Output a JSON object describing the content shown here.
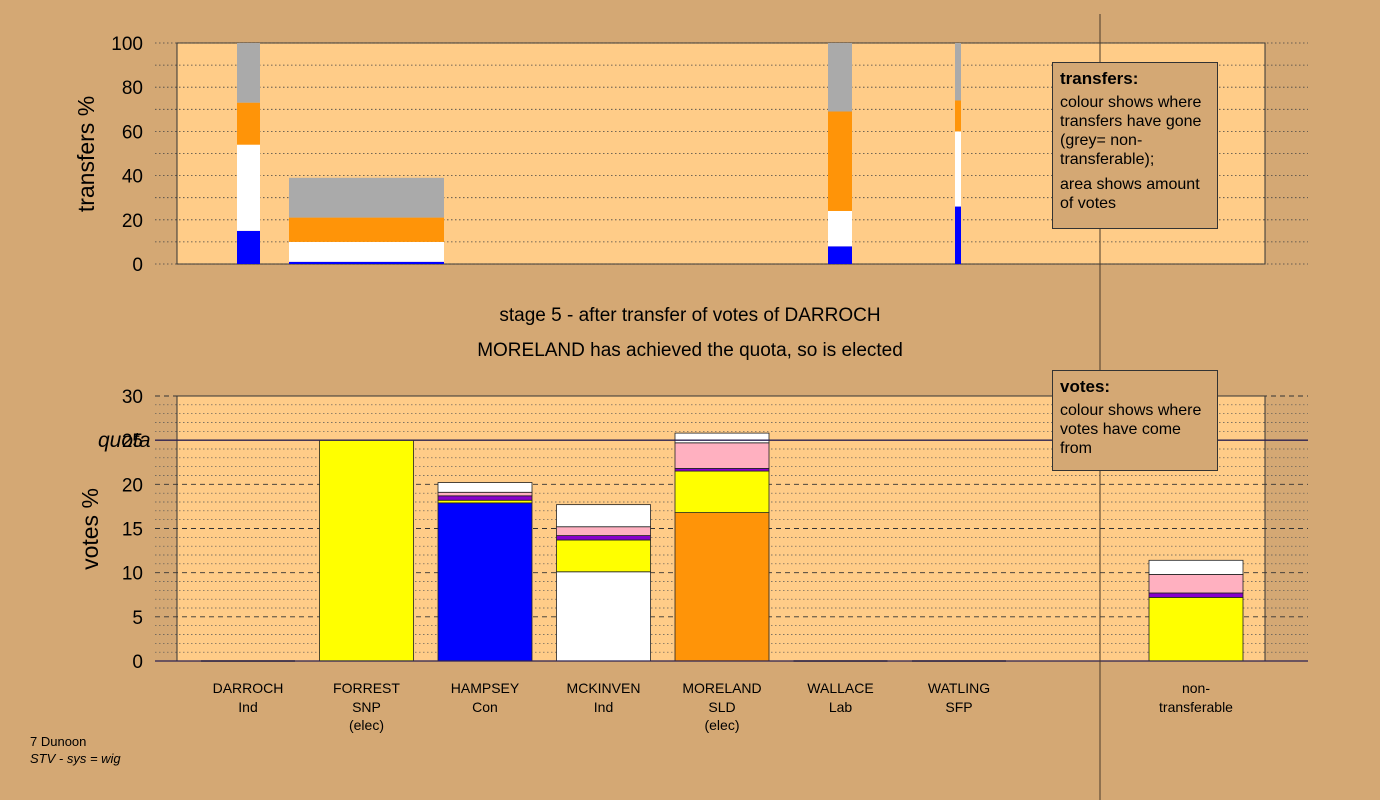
{
  "stage_title": "stage 5 - after transfer of votes of DARROCH",
  "stage_subtitle": "MORELAND has achieved the quota, so is elected",
  "transfers_legend": {
    "heading": "transfers:",
    "line1": "colour shows where transfers have gone (grey= non-transferable);",
    "line2": "area shows amount of votes"
  },
  "votes_legend": {
    "heading": "votes:",
    "line1": "colour shows where votes have come from"
  },
  "footer": {
    "ward": "7 Dunoon",
    "system": "STV - sys = wig"
  },
  "colors": {
    "background": "#d4a874",
    "plot_bg": "#ffcc88",
    "Con": "#0000ff",
    "Ind_MCKINVEN": "#ffffff",
    "SLD": "#ff9408",
    "SNP": "#ffff00",
    "Lab": "#ffb0c0",
    "SFP": "#8800cc",
    "Ind_DARROCH": "#777777",
    "non_transferable": "#aaaaaa"
  },
  "chart_data": [
    {
      "type": "bar",
      "title": "transfers",
      "ylabel": "transfers %",
      "ylim": [
        0,
        100
      ],
      "yticks": [
        "0",
        "20",
        "40",
        "60",
        "80",
        "100"
      ],
      "note": "stacked transfer bars; width proportional to amount of votes",
      "bars": [
        {
          "segments": [
            {
              "color": "Con",
              "from": 0,
              "to": 15
            },
            {
              "color": "Ind_MCKINVEN",
              "from": 15,
              "to": 54
            },
            {
              "color": "SLD",
              "from": 54,
              "to": 73
            },
            {
              "color": "non_transferable",
              "from": 73,
              "to": 100
            }
          ]
        },
        {
          "segments": [
            {
              "color": "Con",
              "from": 0,
              "to": 1
            },
            {
              "color": "Ind_MCKINVEN",
              "from": 1,
              "to": 10
            },
            {
              "color": "SLD",
              "from": 10,
              "to": 21
            },
            {
              "color": "non_transferable",
              "from": 21,
              "to": 39
            }
          ]
        },
        {
          "segments": [
            {
              "color": "Con",
              "from": 0,
              "to": 8
            },
            {
              "color": "Ind_MCKINVEN",
              "from": 8,
              "to": 24
            },
            {
              "color": "SLD",
              "from": 24,
              "to": 69
            },
            {
              "color": "non_transferable",
              "from": 69,
              "to": 100
            }
          ]
        },
        {
          "segments": [
            {
              "color": "Con",
              "from": 0,
              "to": 26
            },
            {
              "color": "Ind_MCKINVEN",
              "from": 26,
              "to": 60
            },
            {
              "color": "SLD",
              "from": 60,
              "to": 74
            },
            {
              "color": "non_transferable",
              "from": 74,
              "to": 100
            }
          ]
        }
      ]
    },
    {
      "type": "bar",
      "title": "votes",
      "ylabel": "votes %",
      "ylim": [
        0,
        30
      ],
      "yticks": [
        "0",
        "5",
        "10",
        "15",
        "20",
        "25",
        "30"
      ],
      "quota": {
        "value": 25,
        "label": "quota"
      },
      "categories": [
        {
          "name": "DARROCH",
          "party": "Ind",
          "status": ""
        },
        {
          "name": "FORREST",
          "party": "SNP",
          "status": "(elec)"
        },
        {
          "name": "HAMPSEY",
          "party": "Con",
          "status": ""
        },
        {
          "name": "MCKINVEN",
          "party": "Ind",
          "status": ""
        },
        {
          "name": "MORELAND",
          "party": "SLD",
          "status": "(elec)"
        },
        {
          "name": "WALLACE",
          "party": "Lab",
          "status": ""
        },
        {
          "name": "WATLING",
          "party": "SFP",
          "status": ""
        },
        {
          "name": "",
          "party": "",
          "status": ""
        },
        {
          "name": "non-",
          "party": "transferable",
          "status": ""
        }
      ],
      "stacks": [
        [],
        [
          {
            "color": "SNP",
            "value": 25.0
          }
        ],
        [
          {
            "color": "Con",
            "value": 17.9
          },
          {
            "color": "SNP",
            "value": 0.3
          },
          {
            "color": "SFP",
            "value": 0.5
          },
          {
            "color": "Lab",
            "value": 0.4
          },
          {
            "color": "Ind_MCKINVEN",
            "value": 1.1
          }
        ],
        [
          {
            "color": "Ind_MCKINVEN",
            "value": 10.1
          },
          {
            "color": "SNP",
            "value": 3.6
          },
          {
            "color": "SFP",
            "value": 0.5
          },
          {
            "color": "Lab",
            "value": 1.0
          },
          {
            "color": "Ind_MCKINVEN",
            "value": 2.5
          }
        ],
        [
          {
            "color": "SLD",
            "value": 16.8
          },
          {
            "color": "SNP",
            "value": 4.7
          },
          {
            "color": "SFP",
            "value": 0.3
          },
          {
            "color": "Lab",
            "value": 2.9
          },
          {
            "color": "Ind_MCKINVEN",
            "value": 1.1
          }
        ],
        [],
        [],
        [],
        [
          {
            "color": "SNP",
            "value": 7.2
          },
          {
            "color": "SFP",
            "value": 0.5
          },
          {
            "color": "Lab",
            "value": 2.1
          },
          {
            "color": "Ind_MCKINVEN",
            "value": 1.6
          }
        ]
      ]
    }
  ]
}
